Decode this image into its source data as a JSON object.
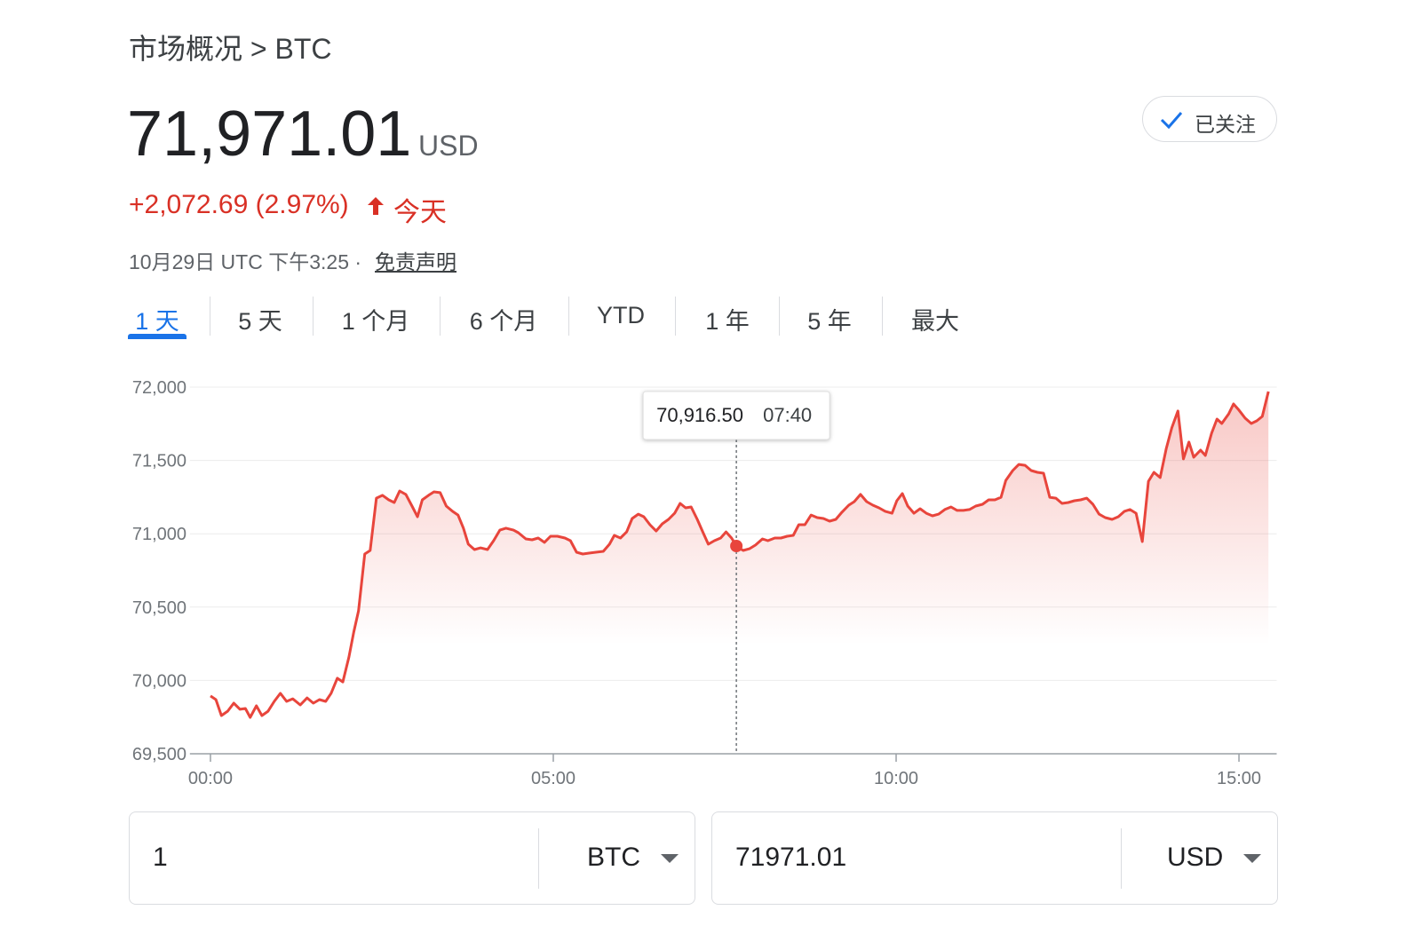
{
  "breadcrumb": "市场概况 > BTC",
  "price": "71,971.01",
  "currency": "USD",
  "change": "+2,072.69 (2.97%)",
  "change_period": "今天",
  "timestamp": "10月29日 UTC 下午3:25 ·",
  "disclaimer": "免责声明",
  "follow_button": "已关注",
  "tabs": [
    "1 天",
    "5 天",
    "1 个月",
    "6 个月",
    "YTD",
    "1 年",
    "5 年",
    "最大"
  ],
  "active_tab": 0,
  "chart_data": {
    "type": "line",
    "x": [
      0,
      0.08,
      0.16,
      0.25,
      0.34,
      0.43,
      0.51,
      0.58,
      0.67,
      0.75,
      0.84,
      0.93,
      1.02,
      1.11,
      1.2,
      1.31,
      1.41,
      1.5,
      1.59,
      1.68,
      1.76,
      1.85,
      1.93,
      2.02,
      2.09,
      2.16,
      2.25,
      2.33,
      2.42,
      2.51,
      2.6,
      2.68,
      2.76,
      2.85,
      2.94,
      3.02,
      3.09,
      3.18,
      3.26,
      3.35,
      3.44,
      3.53,
      3.61,
      3.69,
      3.76,
      3.85,
      3.94,
      4.04,
      4.13,
      4.22,
      4.31,
      4.42,
      4.49,
      4.6,
      4.69,
      4.78,
      4.87,
      4.96,
      5.06,
      5.17,
      5.25,
      5.34,
      5.43,
      5.52,
      5.62,
      5.73,
      5.82,
      5.89,
      5.98,
      6.07,
      6.15,
      6.24,
      6.32,
      6.41,
      6.5,
      6.59,
      6.68,
      6.77,
      6.85,
      6.93,
      7.01,
      7.1,
      7.18,
      7.26,
      7.35,
      7.44,
      7.52,
      7.6,
      7.68,
      7.77,
      7.86,
      7.95,
      8.05,
      8.13,
      8.23,
      8.32,
      8.41,
      8.5,
      8.58,
      8.67,
      8.76,
      8.85,
      8.94,
      9.03,
      9.12,
      9.21,
      9.31,
      9.39,
      9.48,
      9.57,
      9.66,
      9.75,
      9.84,
      9.94,
      10.01,
      10.09,
      10.17,
      10.26,
      10.35,
      10.44,
      10.53,
      10.62,
      10.71,
      10.8,
      10.89,
      10.98,
      11.07,
      11.16,
      11.26,
      11.35,
      11.44,
      11.53,
      11.6,
      11.7,
      11.79,
      11.88,
      11.97,
      12.06,
      12.15,
      12.24,
      12.33,
      12.42,
      12.51,
      12.6,
      12.69,
      12.78,
      12.87,
      12.96,
      13.05,
      13.15,
      13.24,
      13.33,
      13.41,
      13.5,
      13.59,
      13.68,
      13.76,
      13.85,
      13.94,
      14.02,
      14.11,
      14.19,
      14.27,
      14.34,
      14.44,
      14.51,
      14.6,
      14.68,
      14.75,
      14.85,
      14.92,
      15,
      15.09,
      15.18,
      15.26,
      15.34,
      15.43
    ],
    "series": [
      {
        "color": "#e8453c",
        "values": [
          69894,
          69869,
          69760,
          69790,
          69845,
          69803,
          69809,
          69748,
          69827,
          69760,
          69790,
          69857,
          69912,
          69857,
          69875,
          69833,
          69881,
          69845,
          69869,
          69857,
          69912,
          70015,
          69990,
          70160,
          70329,
          70475,
          70862,
          70886,
          71243,
          71262,
          71231,
          71213,
          71292,
          71268,
          71189,
          71116,
          71231,
          71262,
          71286,
          71280,
          71189,
          71153,
          71128,
          71038,
          70929,
          70892,
          70904,
          70892,
          70953,
          71025,
          71038,
          71025,
          71007,
          70965,
          70959,
          70971,
          70941,
          70983,
          70983,
          70971,
          70953,
          70874,
          70862,
          70868,
          70874,
          70880,
          70929,
          70989,
          70971,
          71013,
          71104,
          71134,
          71116,
          71062,
          71019,
          71068,
          71098,
          71140,
          71207,
          71177,
          71183,
          71098,
          71013,
          70929,
          70953,
          70971,
          71013,
          70971,
          70911,
          70886,
          70898,
          70923,
          70965,
          70953,
          70971,
          70971,
          70983,
          70989,
          71062,
          71062,
          71128,
          71110,
          71104,
          71086,
          71098,
          71147,
          71195,
          71219,
          71268,
          71219,
          71195,
          71177,
          71153,
          71140,
          71225,
          71274,
          71189,
          71140,
          71171,
          71140,
          71122,
          71134,
          71165,
          71183,
          71159,
          71159,
          71165,
          71189,
          71201,
          71231,
          71231,
          71249,
          71364,
          71431,
          71473,
          71467,
          71431,
          71419,
          71413,
          71249,
          71243,
          71207,
          71213,
          71225,
          71231,
          71243,
          71201,
          71134,
          71110,
          71098,
          71116,
          71153,
          71165,
          71140,
          70947,
          71358,
          71419,
          71383,
          71582,
          71722,
          71837,
          71510,
          71625,
          71522,
          71570,
          71534,
          71685,
          71782,
          71752,
          71818,
          71885,
          71843,
          71788,
          71752,
          71770,
          71800,
          71970
        ]
      }
    ],
    "xlim": [
      -0.3,
      15.55
    ],
    "xticks": [
      {
        "value": 0,
        "label": "00:00"
      },
      {
        "value": 5,
        "label": "05:00"
      },
      {
        "value": 10,
        "label": "10:00"
      },
      {
        "value": 15,
        "label": "15:00"
      }
    ],
    "ylim": [
      69500,
      72000
    ],
    "yticks": [
      {
        "value": 69500,
        "label": "69,500"
      },
      {
        "value": 70000,
        "label": "70,000"
      },
      {
        "value": 70500,
        "label": "70,500"
      },
      {
        "value": 71000,
        "label": "71,000"
      },
      {
        "value": 71500,
        "label": "71,500"
      },
      {
        "value": 72000,
        "label": "72,000"
      }
    ],
    "grid": true,
    "tooltip": {
      "value": 70916.5,
      "value_label": "70,916.50",
      "x": 7.67,
      "time": "07:40"
    }
  },
  "converter": {
    "from_amount": "1",
    "from_currency": "BTC",
    "to_amount": "71971.01",
    "to_currency": "USD"
  }
}
